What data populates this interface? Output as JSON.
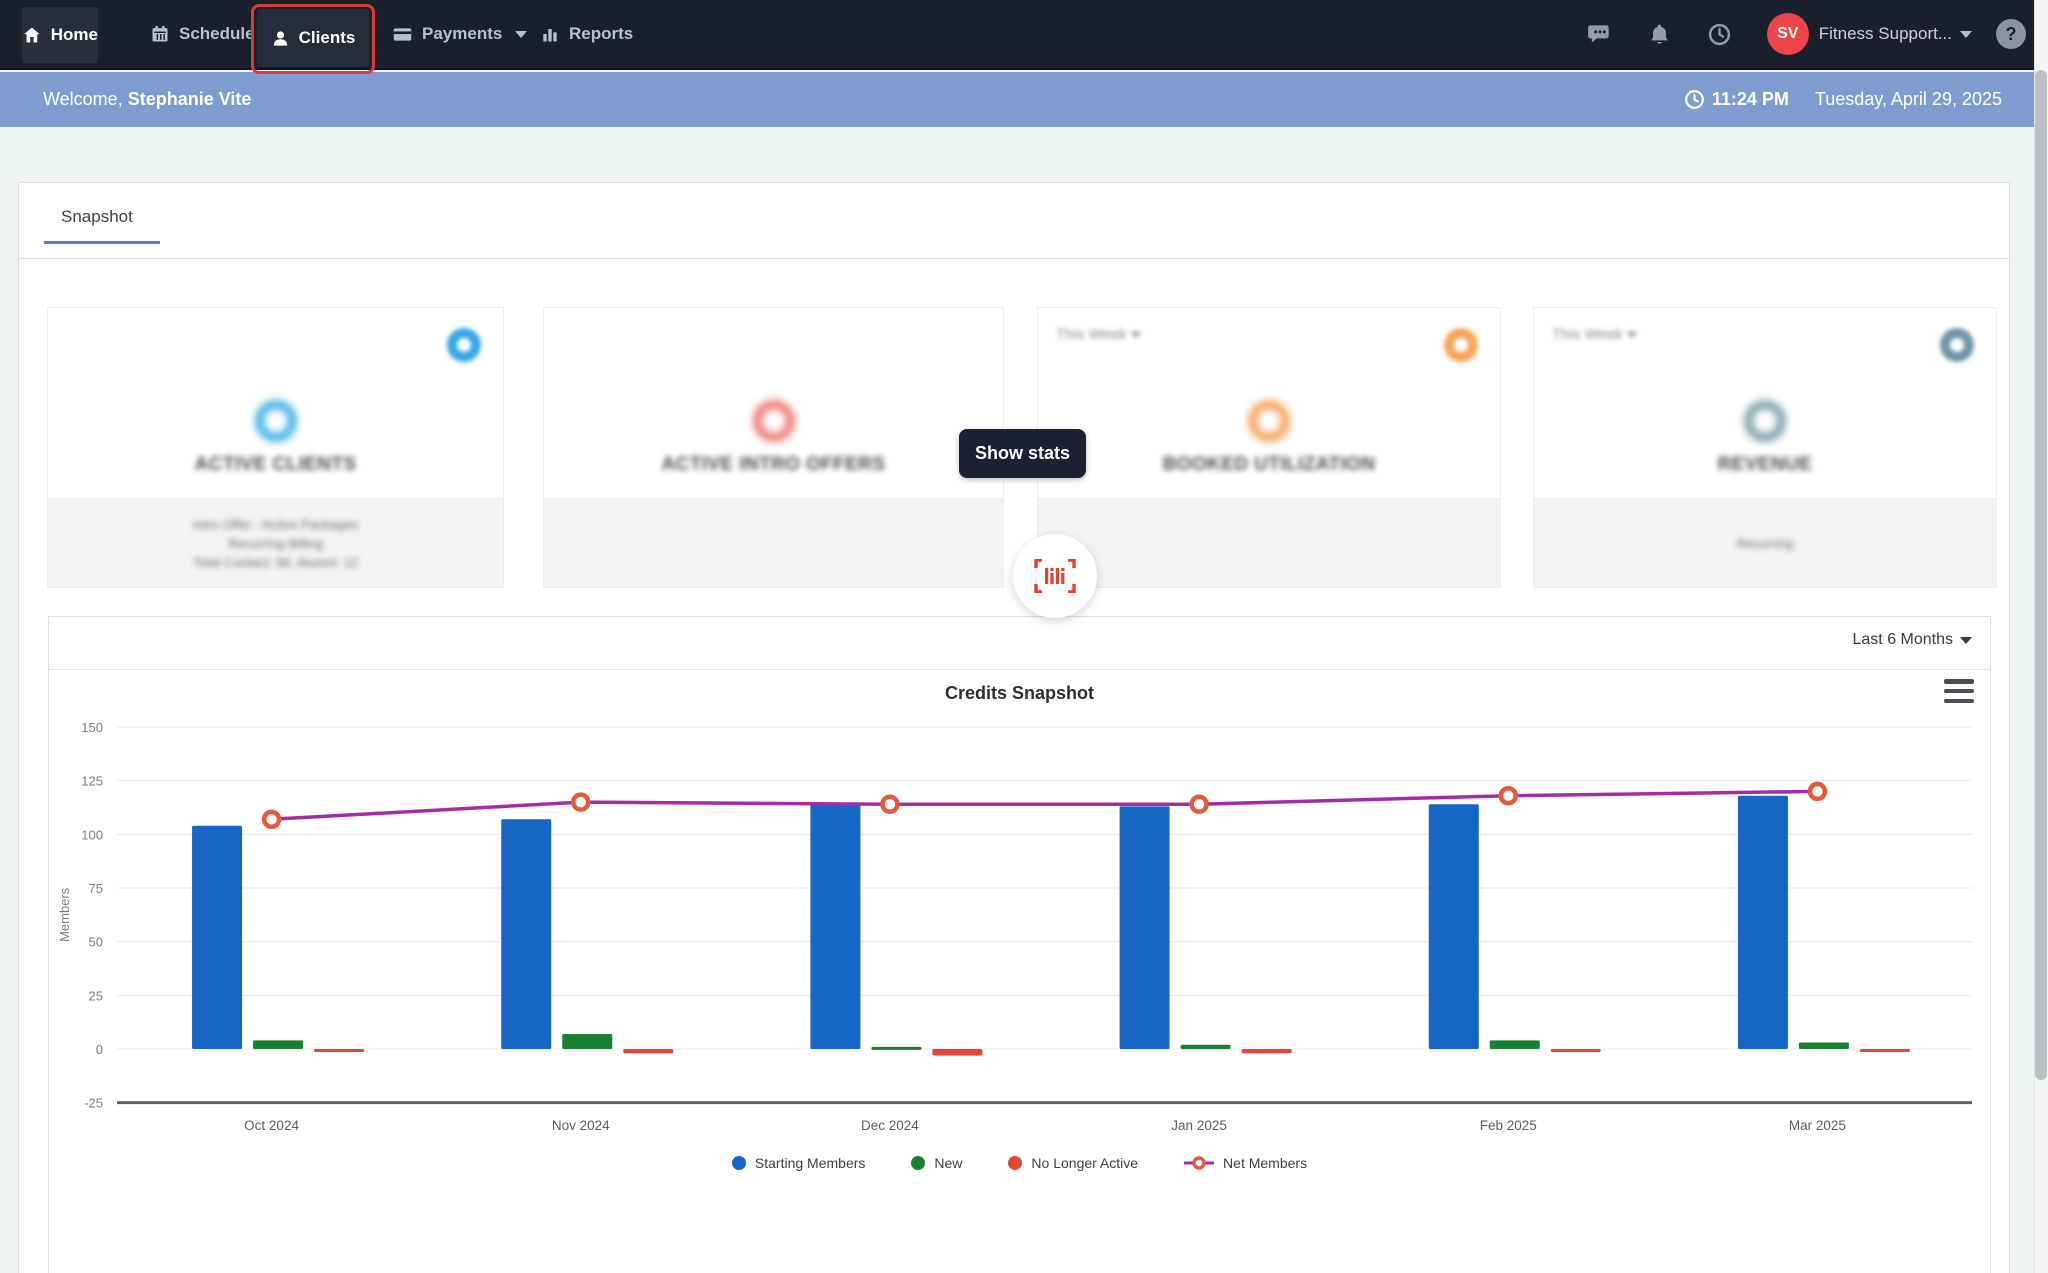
{
  "nav": {
    "items": [
      {
        "label": "Home",
        "icon": "home"
      },
      {
        "label": "Schedule",
        "icon": "calendar"
      },
      {
        "label": "Clients",
        "icon": "person"
      },
      {
        "label": "Payments",
        "icon": "credit-card"
      },
      {
        "label": "Reports",
        "icon": "bar-chart"
      }
    ],
    "avatar_initials": "SV",
    "account_label": "Fitness Support...",
    "help_glyph": "?"
  },
  "welcome": {
    "greeting": "Welcome,",
    "name": "Stephanie Vite",
    "time": "11:24 PM",
    "date": "Tuesday, April 29, 2025"
  },
  "tabs": {
    "snapshot": "Snapshot"
  },
  "cards": [
    {
      "title": "ACTIVE CLIENTS",
      "accent": "#45b1e8",
      "gear_color": "#35a8e8",
      "footer_lines": [
        "Intro Offer - Active Packages",
        "Recurring Billing",
        "Total Contact: 96, Alumni: 12"
      ]
    },
    {
      "title": "ACTIVE INTRO OFFERS",
      "accent": "#ef7b72"
    },
    {
      "title": "BOOKED UTILIZATION",
      "accent": "#f5a45c",
      "gear_color": "#f5a45c",
      "filter_label": "This Week"
    },
    {
      "title": "REVENUE",
      "accent": "#7fa3ab",
      "gear_color": "#7096a5",
      "filter_label": "This Week",
      "footer_lines": [
        "Recurring"
      ]
    }
  ],
  "overlay": {
    "show_stats_label": "Show stats"
  },
  "chart_card": {
    "range_label": "Last 6 Months"
  },
  "chart_data": {
    "type": "bar",
    "title": "Credits Snapshot",
    "ylabel": "Members",
    "ylim": [
      -25,
      150
    ],
    "ytick_step": 25,
    "grid": true,
    "legend_position": "bottom",
    "categories": [
      "Oct 2024",
      "Nov 2024",
      "Dec 2024",
      "Jan 2025",
      "Feb 2025",
      "Mar 2025"
    ],
    "series": [
      {
        "name": "Starting Members",
        "type": "bar",
        "color": "#1666c5",
        "values": [
          104,
          107,
          114,
          113,
          114,
          118
        ]
      },
      {
        "name": "New",
        "type": "bar",
        "color": "#188030",
        "values": [
          4,
          7,
          1,
          2,
          4,
          3
        ]
      },
      {
        "name": "No Longer Active",
        "type": "bar",
        "color": "#e5453a",
        "values": [
          -1,
          -2,
          -3,
          -2,
          -1,
          -1
        ]
      },
      {
        "name": "Net Members",
        "type": "line",
        "color": "#a62ca6",
        "marker_color": "#e8583a",
        "values": [
          107,
          115,
          114,
          114,
          118,
          120
        ]
      }
    ]
  },
  "colors": {
    "nav_bg": "#191f2b",
    "welcome_bg": "#7e9cd0",
    "annotation_red": "#d93b3b",
    "avatar_red": "#ee4549",
    "tab_accent": "#5d80bb",
    "scan_icon_red": "#e8402c"
  }
}
